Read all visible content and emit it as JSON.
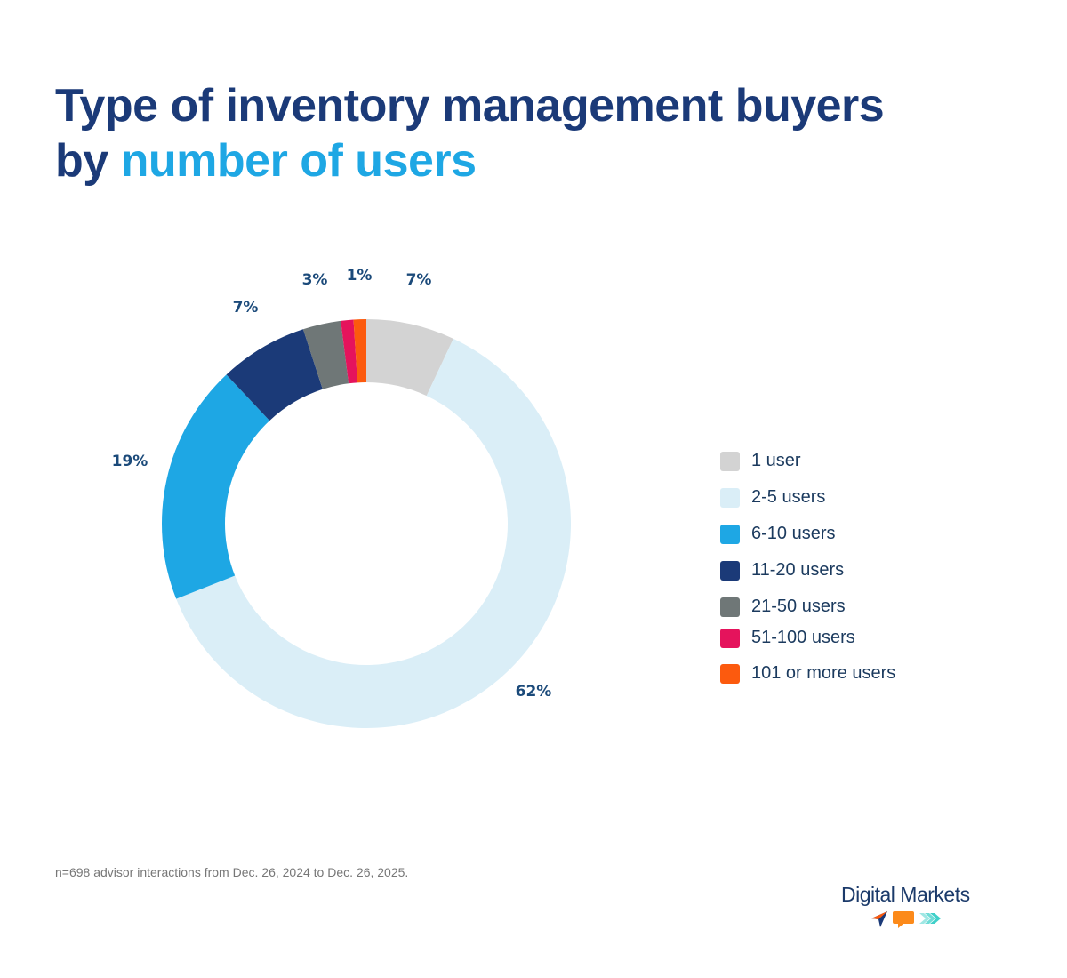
{
  "title": {
    "part1": "Type of inventory management buyers",
    "part2": "by ",
    "accent": "number of users"
  },
  "chart_data": {
    "type": "pie",
    "donut": true,
    "categories": [
      "1 user",
      "2-5 users",
      "6-10 users",
      "11-20 users",
      "21-50 users",
      "51-100 users",
      "101 or more users"
    ],
    "values": [
      7,
      62,
      19,
      7,
      3,
      1,
      1
    ],
    "data_labels": [
      "7%",
      "62%",
      "19%",
      "7%",
      "3%",
      "1%",
      ""
    ],
    "colors": [
      "#d3d3d3",
      "#daeef7",
      "#1ea7e4",
      "#1b3a78",
      "#6f7777",
      "#e5135c",
      "#fc5a0e"
    ],
    "legend_position": "right"
  },
  "footnote": "n=698 advisor interactions from Dec. 26, 2024 to Dec. 26, 2025.",
  "logo": {
    "text": "Digital Markets"
  }
}
